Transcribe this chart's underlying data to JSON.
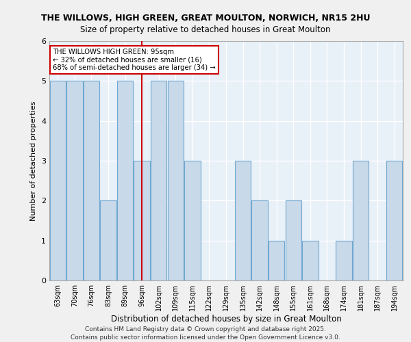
{
  "title_line1": "THE WILLOWS, HIGH GREEN, GREAT MOULTON, NORWICH, NR15 2HU",
  "title_line2": "Size of property relative to detached houses in Great Moulton",
  "xlabel": "Distribution of detached houses by size in Great Moulton",
  "ylabel": "Number of detached properties",
  "bins": [
    "63sqm",
    "70sqm",
    "76sqm",
    "83sqm",
    "89sqm",
    "96sqm",
    "102sqm",
    "109sqm",
    "115sqm",
    "122sqm",
    "129sqm",
    "135sqm",
    "142sqm",
    "148sqm",
    "155sqm",
    "161sqm",
    "168sqm",
    "174sqm",
    "181sqm",
    "187sqm",
    "194sqm"
  ],
  "bin_values": [
    5,
    5,
    5,
    2,
    5,
    3,
    5,
    5,
    3,
    0,
    0,
    3,
    2,
    1,
    2,
    1,
    0,
    1,
    3,
    0,
    3
  ],
  "bar_color": "#c8d9ea",
  "bar_edge_color": "#6fa8d0",
  "property_line_index": 5,
  "property_label": "THE WILLOWS HIGH GREEN: 95sqm",
  "annotation_line1": "THE WILLOWS HIGH GREEN: 95sqm",
  "annotation_line2": "← 32% of detached houses are smaller (16)",
  "annotation_line3": "68% of semi-detached houses are larger (34) →",
  "annotation_box_color": "#ffffff",
  "annotation_box_edge": "#cc0000",
  "vline_color": "#cc0000",
  "ylim": [
    0,
    6
  ],
  "background_color": "#e8f0f8",
  "grid_color": "#ffffff",
  "footer_line1": "Contains HM Land Registry data © Crown copyright and database right 2025.",
  "footer_line2": "Contains public sector information licensed under the Open Government Licence v3.0."
}
